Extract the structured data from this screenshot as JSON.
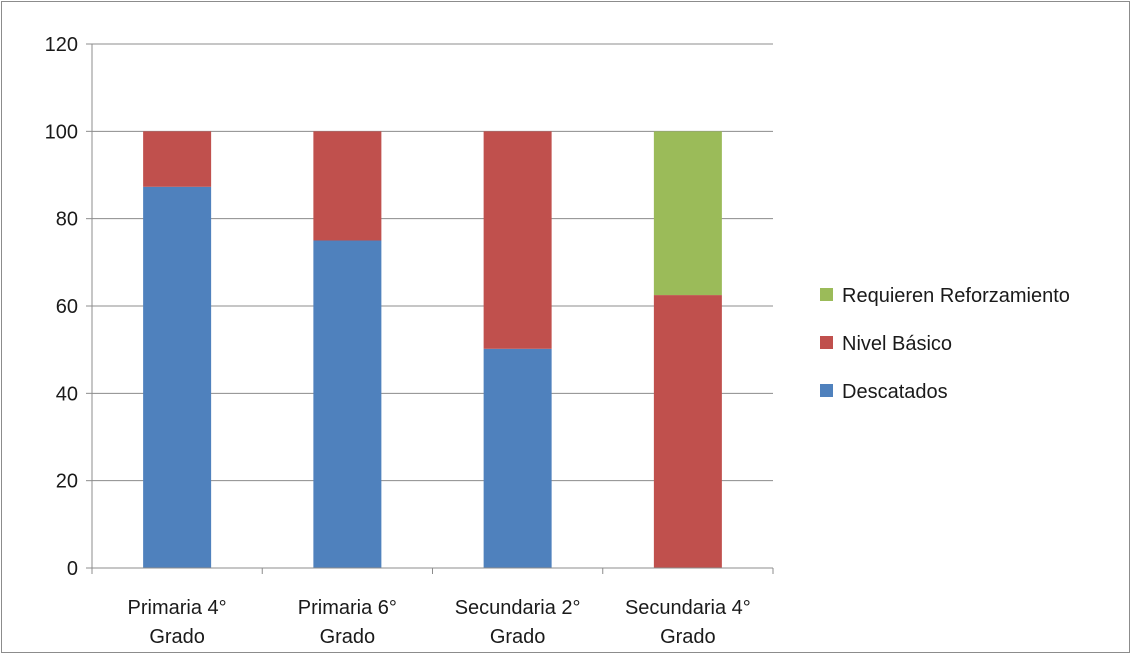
{
  "chart_data": {
    "type": "bar",
    "stacked": true,
    "categories": [
      [
        "Primaria 4°",
        "Grado"
      ],
      [
        "Primaria 6°",
        "Grado"
      ],
      [
        "Secundaria 2°",
        "Grado"
      ],
      [
        "Secundaria 4°",
        "Grado"
      ]
    ],
    "series": [
      {
        "name": "Descatados",
        "color": "#4f81bd",
        "values": [
          87.3,
          75,
          50.2,
          0
        ]
      },
      {
        "name": "Nivel Básico",
        "color": "#c0504d",
        "values": [
          12.7,
          25,
          49.8,
          62.5
        ]
      },
      {
        "name": "Requieren Reforzamiento",
        "color": "#9bbb59",
        "values": [
          0,
          0,
          0,
          37.5
        ]
      }
    ],
    "ylim": [
      0,
      120
    ],
    "yticks": [
      0,
      20,
      40,
      60,
      80,
      100,
      120
    ],
    "grid": true,
    "legend": {
      "position": "right",
      "order": [
        "Requieren Reforzamiento",
        "Nivel Básico",
        "Descatados"
      ]
    },
    "title": "",
    "xlabel": "",
    "ylabel": ""
  }
}
